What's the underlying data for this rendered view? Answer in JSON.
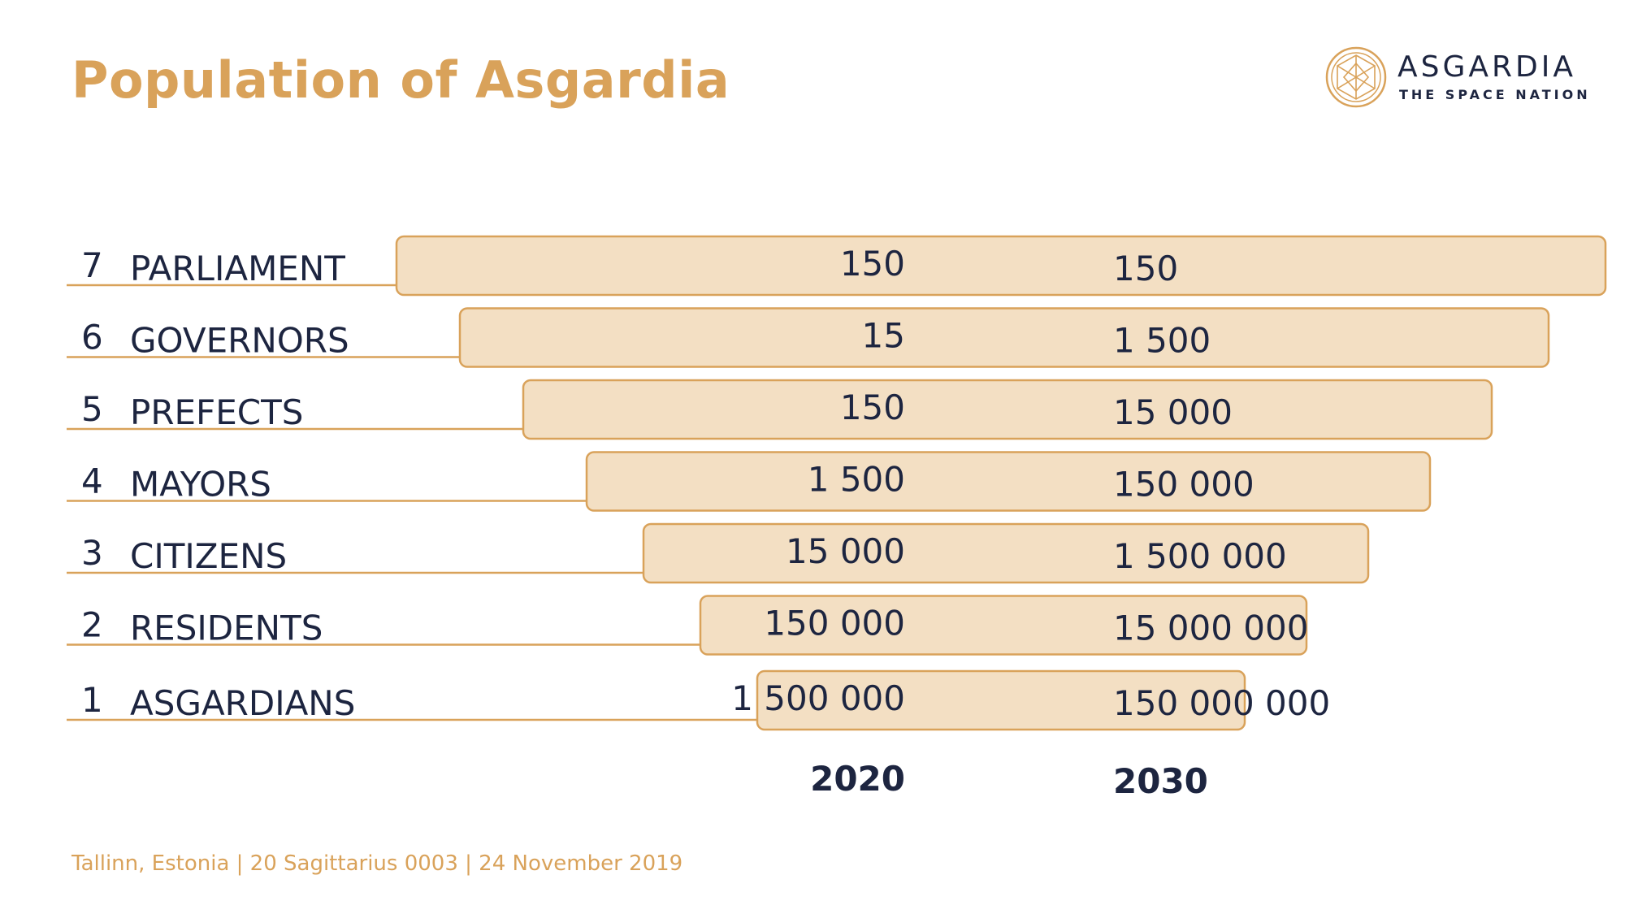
{
  "title": "Population of Asgardia",
  "logo": {
    "name": "ASGARDIA",
    "tagline": "THE SPACE NATION",
    "icon": "asgardia-emblem-icon"
  },
  "footer": "Tallinn, Estonia | 20 Sagittarius 0003 | 24 November 2019",
  "colors": {
    "accent": "#d9a25a",
    "bar_fill": "#f3dfc3",
    "bar_stroke": "#d9a25a",
    "text": "#1d2540"
  },
  "chart_data": {
    "type": "bar",
    "orientation": "horizontal-pyramid",
    "categories": [
      {
        "rank": "7",
        "label": "PARLIAMENT",
        "v2020": "150",
        "v2030": "150"
      },
      {
        "rank": "6",
        "label": "GOVERNORS",
        "v2020": "15",
        "v2030": "1 500"
      },
      {
        "rank": "5",
        "label": "PREFECTS",
        "v2020": "150",
        "v2030": "15 000"
      },
      {
        "rank": "4",
        "label": "MAYORS",
        "v2020": "1 500",
        "v2030": "150 000"
      },
      {
        "rank": "3",
        "label": "CITIZENS",
        "v2020": "15 000",
        "v2030": "1 500 000"
      },
      {
        "rank": "2",
        "label": "RESIDENTS",
        "v2020": "150 000",
        "v2030": "15 000 000"
      },
      {
        "rank": "1",
        "label": "ASGARDIANS",
        "v2020": "1 500 000",
        "v2030": "150 000 000"
      }
    ],
    "series": [
      {
        "name": "2020",
        "values": [
          150,
          15,
          150,
          1500,
          15000,
          150000,
          1500000
        ]
      },
      {
        "name": "2030",
        "values": [
          150,
          1500,
          15000,
          150000,
          1500000,
          15000000,
          150000000
        ]
      }
    ],
    "column_labels": [
      "2020",
      "2030"
    ],
    "grid": false
  }
}
